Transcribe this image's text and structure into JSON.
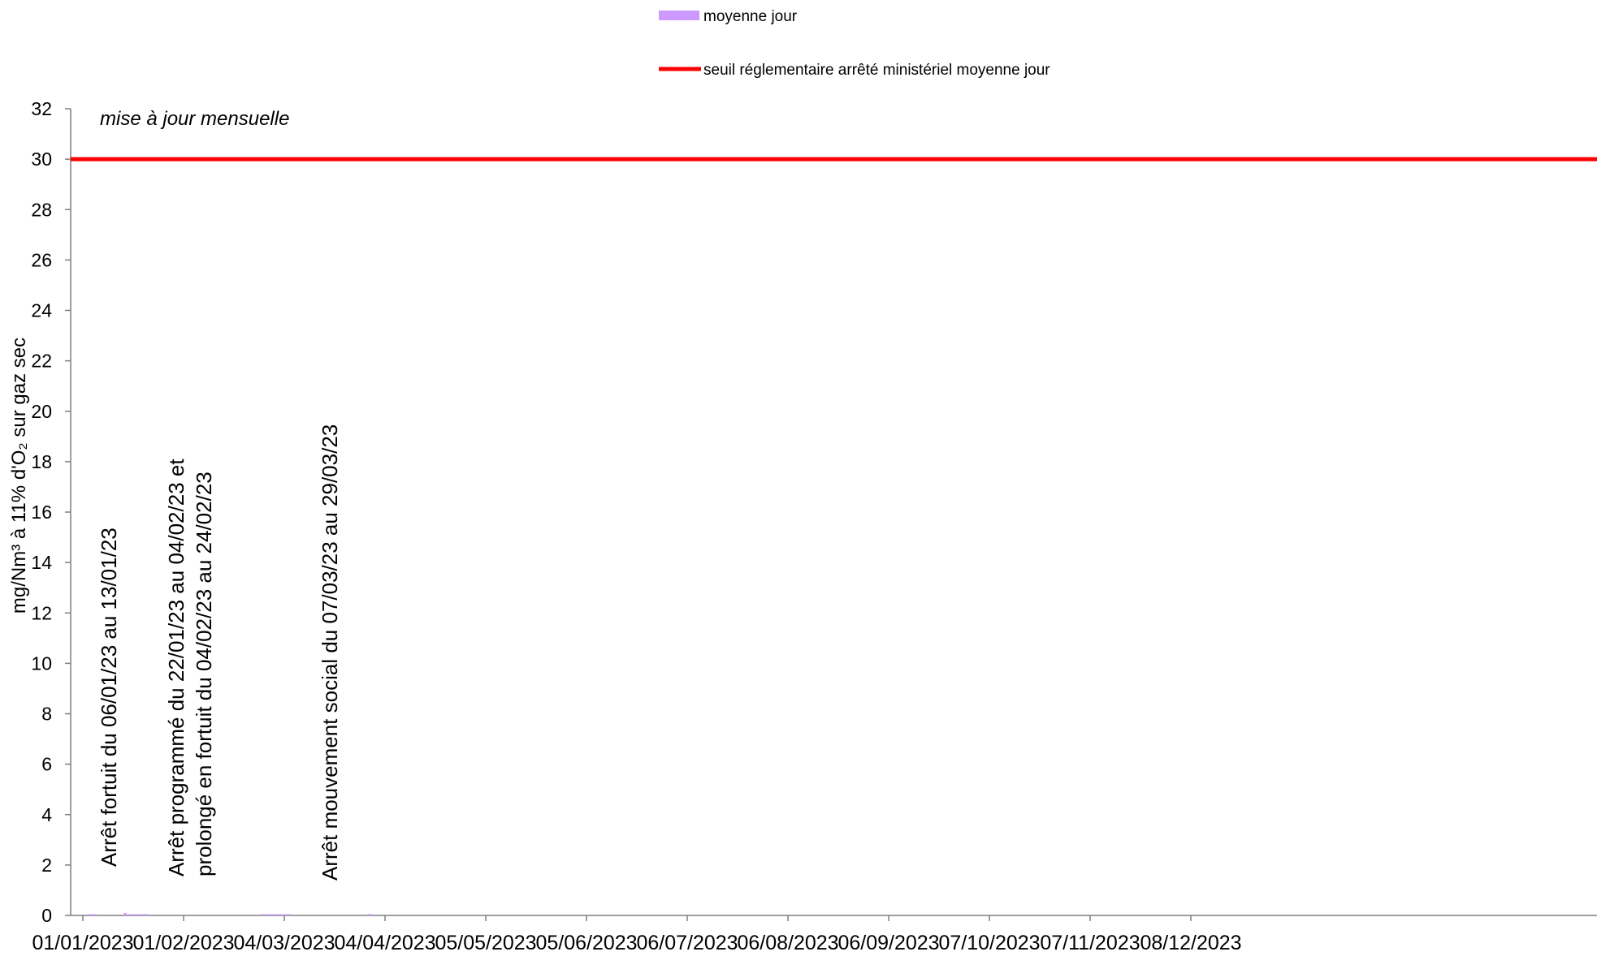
{
  "chart_data": {
    "type": "bar",
    "legend": {
      "placement": "top-center",
      "entries": [
        {
          "label": "moyenne jour",
          "color": "#cc99ff",
          "kind": "bar"
        },
        {
          "label": "seuil réglementaire arrêté ministériel moyenne jour",
          "color": "#ff0000",
          "kind": "line"
        }
      ]
    },
    "ylabel": "mg/Nm³ à 11% d'O₂ sur gaz sec",
    "ylim": [
      0,
      32
    ],
    "yticks": [
      0,
      2,
      4,
      6,
      8,
      10,
      12,
      14,
      16,
      18,
      20,
      22,
      24,
      26,
      28,
      30,
      32
    ],
    "xlim": [
      "2023-01-01",
      "2023-12-31"
    ],
    "xticks": [
      "01/01/2023",
      "01/02/2023",
      "04/03/2023",
      "04/04/2023",
      "05/05/2023",
      "05/06/2023",
      "06/07/2023",
      "06/08/2023",
      "06/09/2023",
      "07/10/2023",
      "07/11/2023",
      "08/12/2023"
    ],
    "grid": false,
    "note": "mise à jour mensuelle",
    "threshold": {
      "name": "seuil réglementaire arrêté ministériel moyenne jour",
      "value": 30,
      "color": "#ff0000"
    },
    "series": [
      {
        "name": "moyenne jour",
        "color": "#cc99ff",
        "points": [
          {
            "x": "2023-01-03",
            "y": 0.05
          },
          {
            "x": "2023-01-04",
            "y": 0.05
          },
          {
            "x": "2023-01-05",
            "y": 0.05
          },
          {
            "x": "2023-01-14",
            "y": 0.1
          },
          {
            "x": "2023-01-15",
            "y": 0.05
          },
          {
            "x": "2023-01-16",
            "y": 0.05
          },
          {
            "x": "2023-01-17",
            "y": 0.05
          },
          {
            "x": "2023-01-18",
            "y": 0.05
          },
          {
            "x": "2023-01-19",
            "y": 0.05
          },
          {
            "x": "2023-01-20",
            "y": 0.05
          },
          {
            "x": "2023-01-21",
            "y": 0.05
          },
          {
            "x": "2023-02-25",
            "y": 0.05
          },
          {
            "x": "2023-02-26",
            "y": 0.05
          },
          {
            "x": "2023-02-27",
            "y": 0.05
          },
          {
            "x": "2023-02-28",
            "y": 0.05
          },
          {
            "x": "2023-03-01",
            "y": 0.05
          },
          {
            "x": "2023-03-02",
            "y": 0.05
          },
          {
            "x": "2023-03-03",
            "y": 0.05
          },
          {
            "x": "2023-03-04",
            "y": 0.05
          },
          {
            "x": "2023-03-05",
            "y": 0.05
          },
          {
            "x": "2023-03-06",
            "y": 0.05
          },
          {
            "x": "2023-03-30",
            "y": 0.05
          },
          {
            "x": "2023-03-31",
            "y": 0.05
          }
        ]
      }
    ],
    "annotations": [
      {
        "lines": [
          "Arrêt fortuit du 06/01/23 au 13/01/23"
        ],
        "x": "2023-01-09"
      },
      {
        "lines": [
          "Arrêt programmé du 22/01/23 au 04/02/23 et",
          "prolongé en fortuit du 04/02/23 au 24/02/23"
        ],
        "x": "2023-02-03"
      },
      {
        "lines": [
          "Arrêt mouvement social du 07/03/23 au 29/03/23"
        ],
        "x": "2023-03-18"
      }
    ]
  }
}
